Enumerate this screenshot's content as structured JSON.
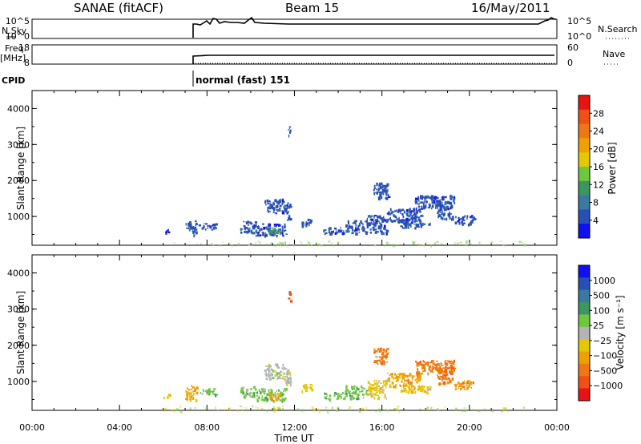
{
  "header": {
    "title": "SANAE (fitACF)",
    "beam": "Beam 15",
    "date": "16/May/2011"
  },
  "summary_panels": {
    "nsky_label": "N.Sky",
    "nsky_ticks": [
      "10^5",
      "10^0"
    ],
    "nsearch_label": "N.Search",
    "nsearch_ticks": [
      "10^5",
      "10^0"
    ],
    "freq_label": "Freq.",
    "freq_unit": "[MHz]",
    "freq_ticks": [
      "18",
      "8"
    ],
    "nave_label": "Nave",
    "nave_ticks": [
      "60",
      "0"
    ],
    "cpid_label": "CPID",
    "cpid_text": "normal (fast) 151"
  },
  "colors": {
    "power_scale": [
      "#1010f0",
      "#2850b4",
      "#3c78a0",
      "#3c9660",
      "#6ec83c",
      "#e6c800",
      "#f0a000",
      "#f07814",
      "#f05014",
      "#e61414"
    ],
    "velocity_scale": [
      "#e61414",
      "#f05014",
      "#f07814",
      "#f0a000",
      "#e6c800",
      "#b4b4b4",
      "#6ec83c",
      "#3c9660",
      "#3c78a0",
      "#2850b4",
      "#1010f0"
    ]
  },
  "chart_data": [
    {
      "type": "heatmap",
      "name": "power",
      "ylabel": "Slant Range [km]",
      "yticks": [
        "1000",
        "2000",
        "3000",
        "4000"
      ],
      "ylim": [
        200,
        4500
      ],
      "xlim": [
        0,
        24
      ],
      "colorbar_label": "Power [dB]",
      "colorbar_ticks": [
        "4",
        "8",
        "12",
        "16",
        "20",
        "24",
        "28"
      ],
      "clusters": [
        {
          "t0": 6.0,
          "t1": 6.3,
          "r0": 560,
          "r1": 680,
          "level": 0
        },
        {
          "t0": 7.0,
          "t1": 7.5,
          "r0": 500,
          "r1": 900,
          "level": 1
        },
        {
          "t0": 7.6,
          "t1": 8.4,
          "r0": 650,
          "r1": 820,
          "level": 1
        },
        {
          "t0": 9.5,
          "t1": 10.2,
          "r0": 560,
          "r1": 880,
          "level": 1
        },
        {
          "t0": 10.2,
          "t1": 11.6,
          "r0": 480,
          "r1": 820,
          "level": 1
        },
        {
          "t0": 10.8,
          "t1": 11.3,
          "r0": 520,
          "r1": 700,
          "level": 3
        },
        {
          "t0": 10.6,
          "t1": 11.5,
          "r0": 1100,
          "r1": 1500,
          "level": 1
        },
        {
          "t0": 11.5,
          "t1": 11.8,
          "r0": 900,
          "r1": 1400,
          "level": 1
        },
        {
          "t0": 11.7,
          "t1": 11.8,
          "r0": 3250,
          "r1": 3550,
          "level": 1
        },
        {
          "t0": 12.3,
          "t1": 12.8,
          "r0": 750,
          "r1": 950,
          "level": 1
        },
        {
          "t0": 13.3,
          "t1": 14.3,
          "r0": 520,
          "r1": 720,
          "level": 1
        },
        {
          "t0": 14.3,
          "t1": 15.3,
          "r0": 550,
          "r1": 900,
          "level": 1
        },
        {
          "t0": 15.3,
          "t1": 16.2,
          "r0": 550,
          "r1": 1050,
          "level": 1
        },
        {
          "t0": 15.6,
          "t1": 16.3,
          "r0": 1500,
          "r1": 1950,
          "level": 1
        },
        {
          "t0": 16.2,
          "t1": 17.8,
          "r0": 880,
          "r1": 1250,
          "level": 1
        },
        {
          "t0": 16.8,
          "t1": 18.2,
          "r0": 700,
          "r1": 900,
          "level": 1
        },
        {
          "t0": 17.5,
          "t1": 19.3,
          "r0": 1250,
          "r1": 1600,
          "level": 1
        },
        {
          "t0": 18.5,
          "t1": 19.2,
          "r0": 950,
          "r1": 1400,
          "level": 1
        },
        {
          "t0": 19.3,
          "t1": 20.2,
          "r0": 800,
          "r1": 1050,
          "level": 1
        },
        {
          "t0": 6.0,
          "t1": 22.5,
          "r0": 200,
          "r1": 330,
          "level": 4
        }
      ]
    },
    {
      "type": "heatmap",
      "name": "velocity",
      "ylabel": "Slant Range [km]",
      "yticks": [
        "1000",
        "2000",
        "3000",
        "4000"
      ],
      "ylim": [
        200,
        4500
      ],
      "xlabel": "Time UT",
      "xticks": [
        "00:00",
        "04:00",
        "08:00",
        "12:00",
        "16:00",
        "20:00",
        "00:00"
      ],
      "xlim": [
        0,
        24
      ],
      "colorbar_label": "Velocity [m s⁻¹]",
      "colorbar_ticks": [
        "1000",
        "500",
        "100",
        "25",
        "−25",
        "−100",
        "−500",
        "−1000"
      ],
      "clusters": [
        {
          "t0": 6.0,
          "t1": 6.3,
          "r0": 560,
          "r1": 680,
          "level": 4
        },
        {
          "t0": 7.0,
          "t1": 7.5,
          "r0": 500,
          "r1": 900,
          "level": 3
        },
        {
          "t0": 7.6,
          "t1": 8.4,
          "r0": 650,
          "r1": 820,
          "level": 6
        },
        {
          "t0": 9.5,
          "t1": 10.2,
          "r0": 560,
          "r1": 880,
          "level": 6
        },
        {
          "t0": 10.2,
          "t1": 11.6,
          "r0": 480,
          "r1": 820,
          "level": 6
        },
        {
          "t0": 10.8,
          "t1": 11.3,
          "r0": 520,
          "r1": 700,
          "level": 3
        },
        {
          "t0": 10.6,
          "t1": 11.5,
          "r0": 1100,
          "r1": 1500,
          "level": 5
        },
        {
          "t0": 11.5,
          "t1": 11.8,
          "r0": 900,
          "r1": 1400,
          "level": 5
        },
        {
          "t0": 11.7,
          "t1": 11.8,
          "r0": 3250,
          "r1": 3550,
          "level": 1
        },
        {
          "t0": 12.3,
          "t1": 12.8,
          "r0": 750,
          "r1": 950,
          "level": 4
        },
        {
          "t0": 13.3,
          "t1": 14.3,
          "r0": 520,
          "r1": 720,
          "level": 6
        },
        {
          "t0": 14.3,
          "t1": 15.3,
          "r0": 550,
          "r1": 900,
          "level": 6
        },
        {
          "t0": 15.3,
          "t1": 16.2,
          "r0": 550,
          "r1": 1050,
          "level": 4
        },
        {
          "t0": 15.6,
          "t1": 16.3,
          "r0": 1500,
          "r1": 1950,
          "level": 2
        },
        {
          "t0": 16.2,
          "t1": 17.8,
          "r0": 880,
          "r1": 1250,
          "level": 3
        },
        {
          "t0": 16.8,
          "t1": 18.2,
          "r0": 700,
          "r1": 900,
          "level": 4
        },
        {
          "t0": 17.5,
          "t1": 19.3,
          "r0": 1250,
          "r1": 1600,
          "level": 2
        },
        {
          "t0": 18.5,
          "t1": 19.2,
          "r0": 950,
          "r1": 1400,
          "level": 2
        },
        {
          "t0": 19.3,
          "t1": 20.2,
          "r0": 800,
          "r1": 1050,
          "level": 3
        },
        {
          "t0": 6.0,
          "t1": 22.5,
          "r0": 200,
          "r1": 330,
          "level": 4
        }
      ]
    }
  ]
}
